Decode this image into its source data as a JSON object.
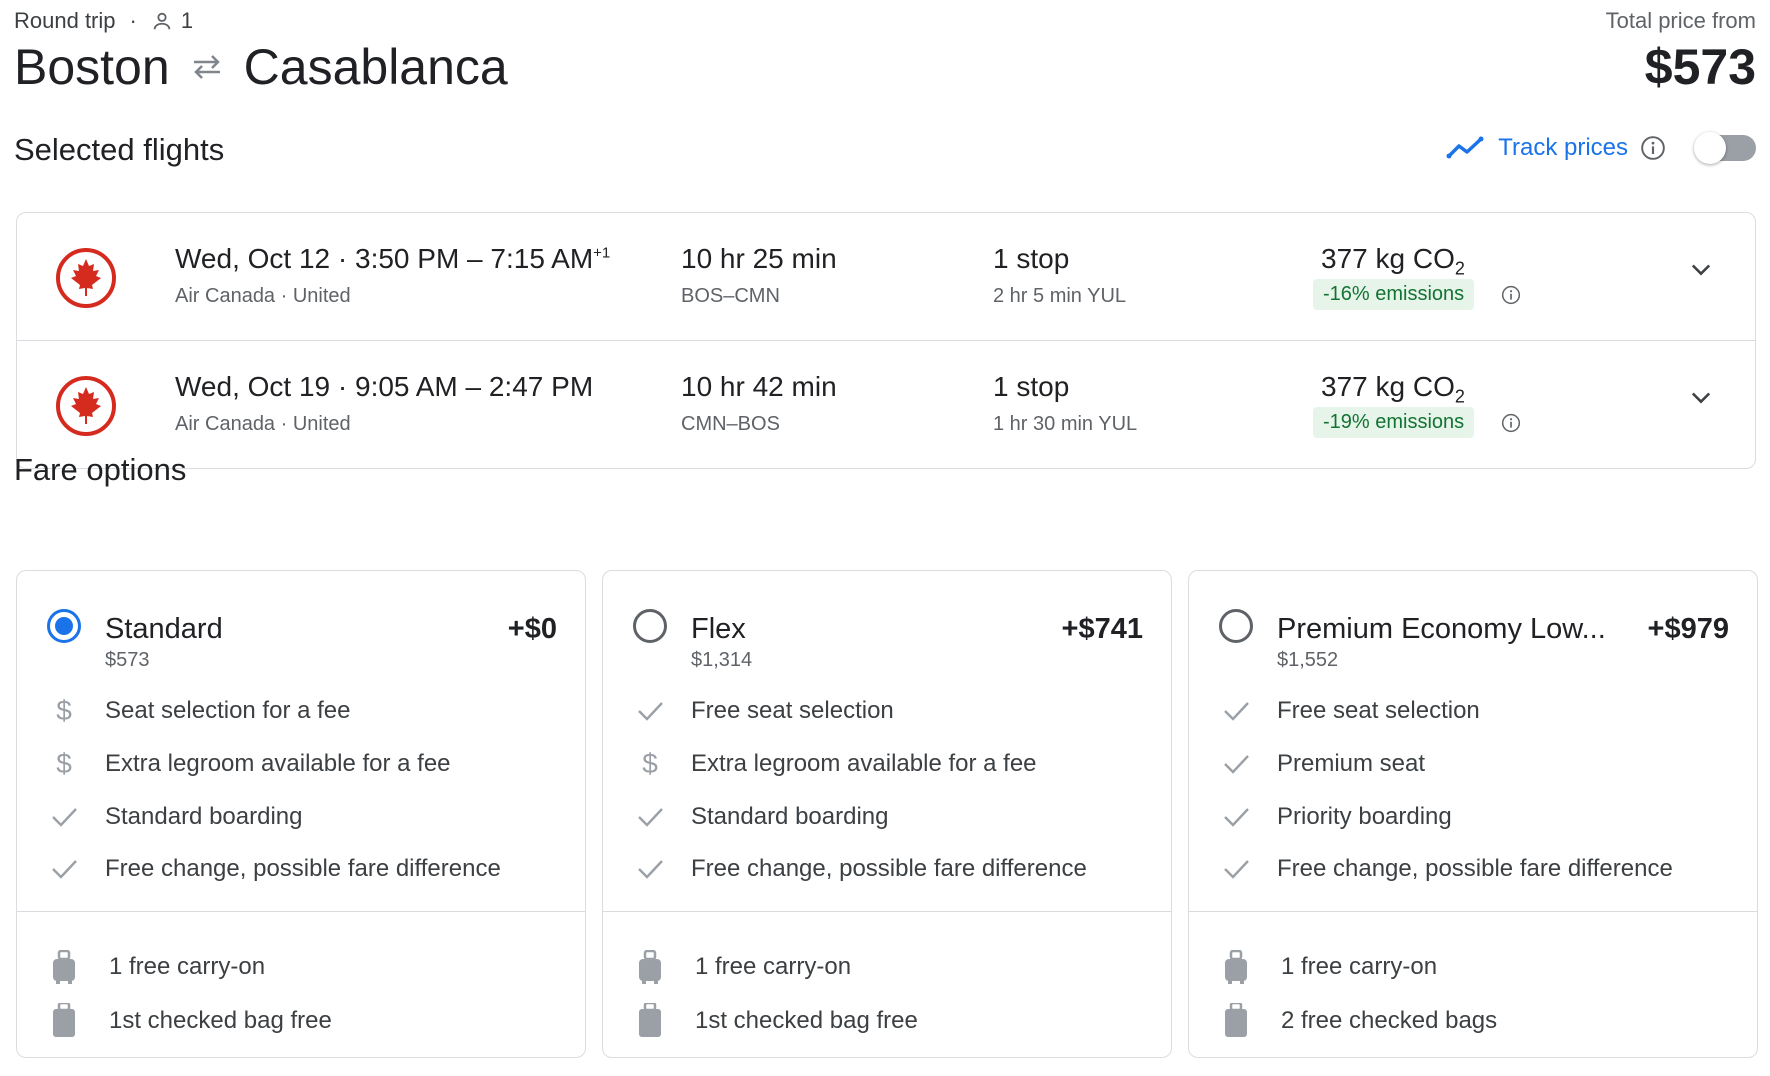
{
  "header": {
    "trip_type": "Round trip",
    "passengers": "1",
    "origin": "Boston",
    "destination": "Casablanca",
    "price_label": "Total price from",
    "total_price": "$573"
  },
  "selected": {
    "title": "Selected flights",
    "track_label": "Track prices",
    "track_enabled": false,
    "flights": [
      {
        "date": "Wed, Oct 12",
        "times": "3:50 PM – 7:15 AM",
        "day_offset": "+1",
        "airlines": "Air Canada · United",
        "duration": "10 hr 25 min",
        "route": "BOS–CMN",
        "stops": "1 stop",
        "stop_detail": "2 hr 5 min YUL",
        "co2": "377 kg CO",
        "co2_sub": "2",
        "emissions": "-16% emissions"
      },
      {
        "date": "Wed, Oct 19",
        "times": "9:05 AM – 2:47 PM",
        "day_offset": "",
        "airlines": "Air Canada · United",
        "duration": "10 hr 42 min",
        "route": "CMN–BOS",
        "stops": "1 stop",
        "stop_detail": "1 hr 30 min YUL",
        "co2": "377 kg CO",
        "co2_sub": "2",
        "emissions": "-19% emissions"
      }
    ]
  },
  "fares": {
    "title": "Fare options",
    "options": [
      {
        "name": "Standard",
        "price": "$573",
        "add": "+$0",
        "selected": true,
        "features": [
          {
            "icon": "dollar-icon",
            "text": "Seat selection for a fee"
          },
          {
            "icon": "dollar-icon",
            "text": "Extra legroom available for a fee"
          },
          {
            "icon": "check-icon",
            "text": "Standard boarding"
          },
          {
            "icon": "check-icon",
            "text": "Free change, possible fare difference"
          }
        ],
        "bags": [
          {
            "icon": "carry-on-icon",
            "text": "1 free carry-on"
          },
          {
            "icon": "checked-bag-icon",
            "text": "1st checked bag free"
          }
        ]
      },
      {
        "name": "Flex",
        "price": "$1,314",
        "add": "+$741",
        "selected": false,
        "features": [
          {
            "icon": "check-icon",
            "text": "Free seat selection"
          },
          {
            "icon": "dollar-icon",
            "text": "Extra legroom available for a fee"
          },
          {
            "icon": "check-icon",
            "text": "Standard boarding"
          },
          {
            "icon": "check-icon",
            "text": "Free change, possible fare difference"
          }
        ],
        "bags": [
          {
            "icon": "carry-on-icon",
            "text": "1 free carry-on"
          },
          {
            "icon": "checked-bag-icon",
            "text": "1st checked bag free"
          }
        ]
      },
      {
        "name": "Premium Economy Low...",
        "price": "$1,552",
        "add": "+$979",
        "selected": false,
        "features": [
          {
            "icon": "check-icon",
            "text": "Free seat selection"
          },
          {
            "icon": "check-icon",
            "text": "Premium seat"
          },
          {
            "icon": "check-icon",
            "text": "Priority boarding"
          },
          {
            "icon": "check-icon",
            "text": "Free change, possible fare difference"
          }
        ],
        "bags": [
          {
            "icon": "carry-on-icon",
            "text": "1 free carry-on"
          },
          {
            "icon": "checked-bag-icon",
            "text": "2 free checked bags"
          }
        ]
      }
    ]
  },
  "colors": {
    "accent": "#1a73e8",
    "airline_red": "#d52b1e",
    "emissions_green": "#137333",
    "emissions_bg": "#e6f4ea",
    "icon_gray": "#9aa0a6"
  }
}
